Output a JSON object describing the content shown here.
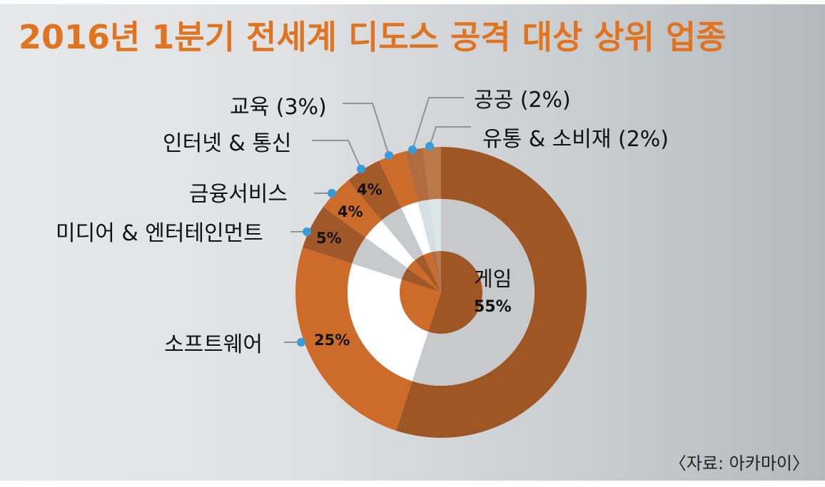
{
  "title": "2016년 1분기 전세계 디도스 공격 대상 상위 업종",
  "source": "〈자료: 아카마이〉",
  "colors": {
    "title": "#e07420",
    "dot": "#3a9bd9",
    "leader": "#8d9397"
  },
  "labels": {
    "game": "게임",
    "game_pct": "55%",
    "software": "소프트웨어",
    "software_pct": "25%",
    "media": "미디어 & 엔터테인먼트",
    "media_pct": "5%",
    "finance": "금융서비스",
    "finance_pct": "4%",
    "internet": "인터넷 & 통신",
    "internet_pct": "4%",
    "education": "교육 (3%)",
    "public": "공공 (2%)",
    "retail": "유통 & 소비재 (2%)"
  },
  "chart_data": {
    "type": "pie",
    "variant": "layered donut (outer ring, middle ring, inner pie)",
    "title": "2016년 1분기 전세계 디도스 공격 대상 상위 업종",
    "categories": [
      "게임",
      "소프트웨어",
      "미디어 & 엔터테인먼트",
      "금융서비스",
      "인터넷 & 통신",
      "교육",
      "공공",
      "유통 & 소비재"
    ],
    "values": [
      55,
      25,
      5,
      4,
      4,
      3,
      2,
      2
    ],
    "unit": "%",
    "start_angle_deg": 0,
    "direction": "clockwise",
    "outer_colors": [
      "#9e5624",
      "#cd6b2a",
      "#a0582a",
      "#cd6b2a",
      "#a35a26",
      "#cd6b2a",
      "#b26b3e",
      "#bb7848"
    ],
    "middle_colors": [
      "#c8c9ca",
      "#ffffff",
      "#c8c9ca",
      "#ffffff",
      "#c8c9ca",
      "#ffffff",
      "#d6e0e4",
      "#dce5e8"
    ],
    "inner_colors": [
      "#9e5624",
      "#cd6b2a",
      "#a0582a",
      "#cd6b2a",
      "#a35a26",
      "#cd6b2a",
      "#b26b3e",
      "#bb7848"
    ],
    "source": "〈자료: 아카마이〉",
    "legend": "none (callout labels with leader lines)"
  }
}
